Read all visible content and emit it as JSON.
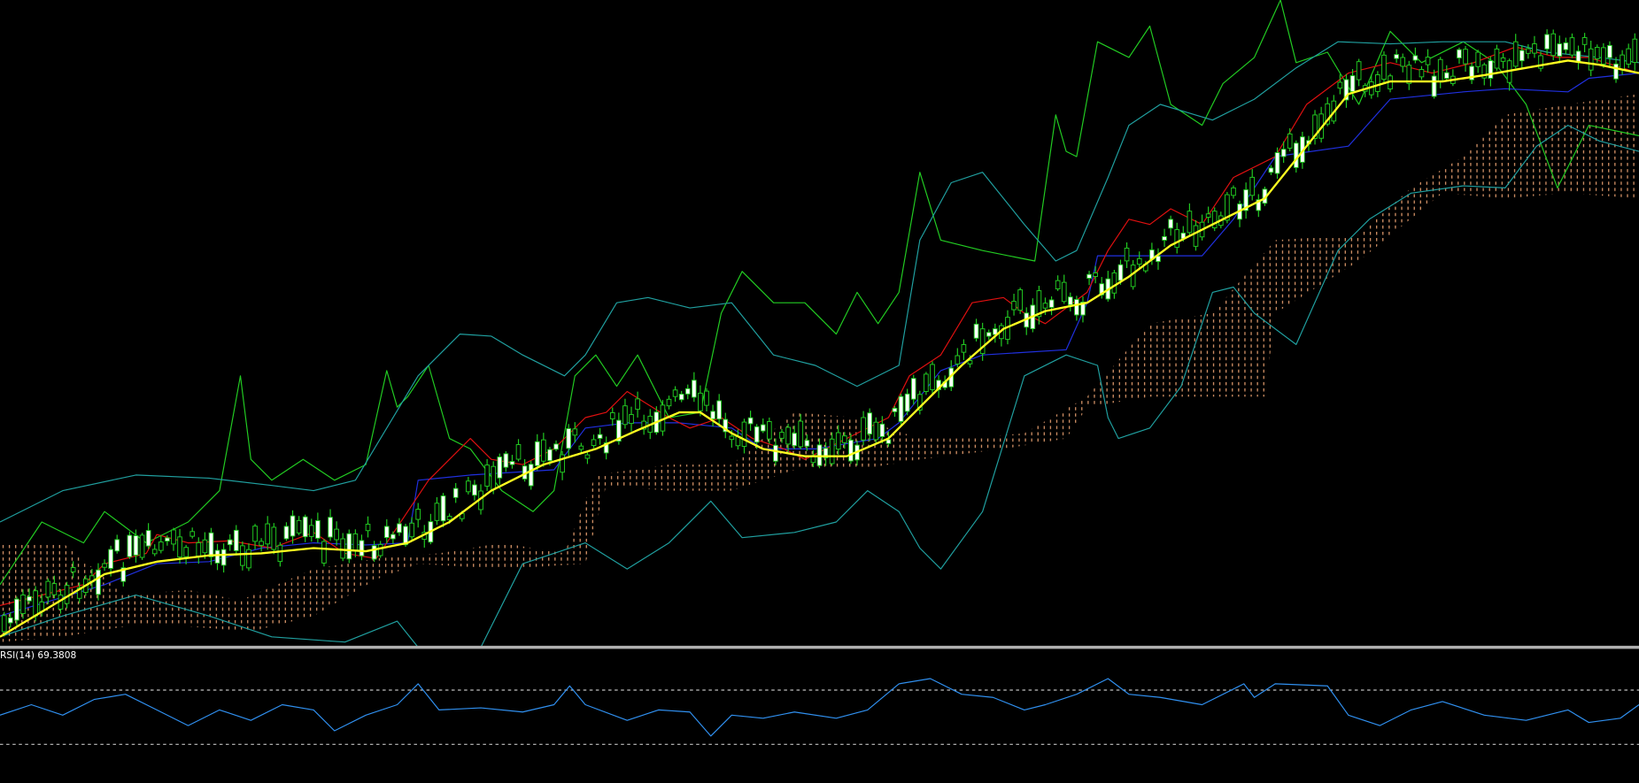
{
  "indicator_label": "RSI(14) 69.3808"
}
